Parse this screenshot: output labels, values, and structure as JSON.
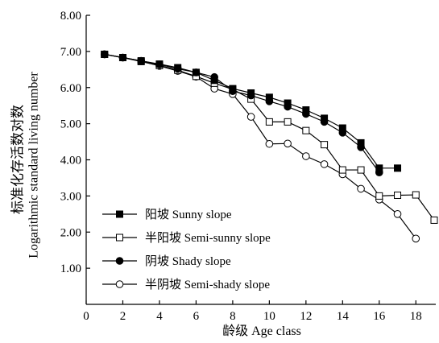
{
  "chart_data": {
    "type": "line",
    "title": "",
    "xlabel": "龄级 Age class",
    "ylabel": [
      "标准化存活数对数",
      "Logarithmic standard living number"
    ],
    "xlim": [
      0,
      19
    ],
    "ylim": [
      0,
      8
    ],
    "xticks": [
      "0",
      "2",
      "4",
      "6",
      "8",
      "10",
      "12",
      "14",
      "16",
      "18"
    ],
    "yticks": [
      "1.00",
      "2.00",
      "3.00",
      "4.00",
      "5.00",
      "6.00",
      "7.00",
      "8.00"
    ],
    "grid": false,
    "legend": "lower-left",
    "series": [
      {
        "name": "阳坡 Sunny slope",
        "marker": "filled-square",
        "color": "#000000",
        "x": [
          1,
          2,
          3,
          4,
          5,
          6,
          7,
          8,
          9,
          10,
          11,
          12,
          13,
          14,
          15,
          16,
          17
        ],
        "y": [
          6.92,
          6.83,
          6.74,
          6.65,
          6.55,
          6.42,
          6.2,
          5.97,
          5.85,
          5.73,
          5.57,
          5.38,
          5.15,
          4.88,
          4.47,
          3.77,
          3.77
        ]
      },
      {
        "name": "半阳坡 Semi-sunny slope",
        "marker": "open-square",
        "color": "#000000",
        "x": [
          1,
          2,
          3,
          4,
          5,
          6,
          7,
          8,
          9,
          10,
          11,
          12,
          13,
          14,
          15,
          16,
          17,
          18,
          19
        ],
        "y": [
          6.92,
          6.83,
          6.72,
          6.61,
          6.48,
          6.31,
          6.12,
          5.95,
          5.68,
          5.05,
          5.05,
          4.81,
          4.42,
          3.72,
          3.72,
          3.0,
          3.02,
          3.03,
          2.33
        ]
      },
      {
        "name": "阴坡 Shady slope",
        "marker": "filled-circle",
        "color": "#000000",
        "x": [
          1,
          2,
          3,
          4,
          5,
          6,
          7,
          8,
          9,
          10,
          11,
          12,
          13,
          14,
          15,
          16
        ],
        "y": [
          6.92,
          6.83,
          6.74,
          6.64,
          6.52,
          6.42,
          6.29,
          5.9,
          5.78,
          5.62,
          5.47,
          5.27,
          5.05,
          4.75,
          4.35,
          3.65
        ]
      },
      {
        "name": "半阴坡 Semi-shady slope",
        "marker": "open-circle",
        "color": "#000000",
        "x": [
          1,
          2,
          3,
          4,
          5,
          6,
          7,
          8,
          9,
          10,
          11,
          12,
          13,
          14,
          15,
          16,
          17,
          18
        ],
        "y": [
          6.92,
          6.83,
          6.73,
          6.6,
          6.46,
          6.3,
          5.97,
          5.82,
          5.19,
          4.44,
          4.45,
          4.1,
          3.88,
          3.6,
          3.2,
          2.9,
          2.5,
          1.82
        ]
      }
    ]
  }
}
